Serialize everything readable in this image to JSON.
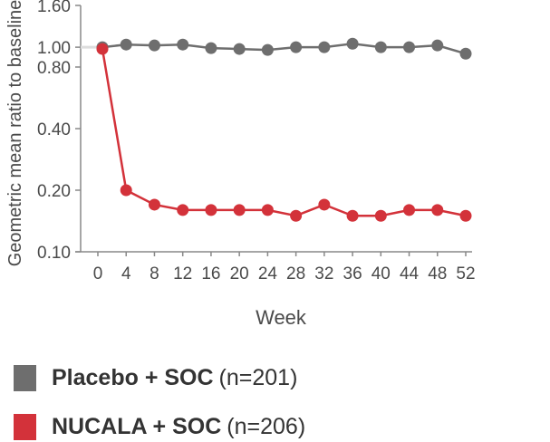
{
  "chart_data": {
    "type": "line",
    "title": "",
    "xlabel": "Week",
    "ylabel": "Geometric mean ratio to baseline",
    "y_scale": "log",
    "ylim": [
      0.1,
      1.6
    ],
    "xlim": [
      0,
      52
    ],
    "x_ticks": [
      "0",
      "4",
      "8",
      "12",
      "16",
      "20",
      "24",
      "28",
      "32",
      "36",
      "40",
      "44",
      "48",
      "52"
    ],
    "y_ticks": [
      "1.60",
      "1.00",
      "0.80",
      "0.40",
      "0.20",
      "0.10"
    ],
    "x": [
      0,
      4,
      8,
      12,
      16,
      20,
      24,
      28,
      32,
      36,
      40,
      44,
      48,
      52
    ],
    "grid": false,
    "legend_placement": "bottom",
    "series": [
      {
        "name": "Placebo + SOC",
        "n_label": "(n=201)",
        "color": "#6e6e6e",
        "values": [
          1.0,
          1.03,
          1.02,
          1.03,
          0.99,
          0.98,
          0.97,
          1.0,
          1.0,
          1.04,
          1.0,
          1.0,
          1.02,
          0.93
        ]
      },
      {
        "name": "NUCALA + SOC",
        "n_label": "(n=206)",
        "color": "#d3323a",
        "values": [
          0.98,
          0.2,
          0.17,
          0.16,
          0.16,
          0.16,
          0.16,
          0.15,
          0.17,
          0.15,
          0.15,
          0.16,
          0.16,
          0.15
        ]
      }
    ]
  }
}
